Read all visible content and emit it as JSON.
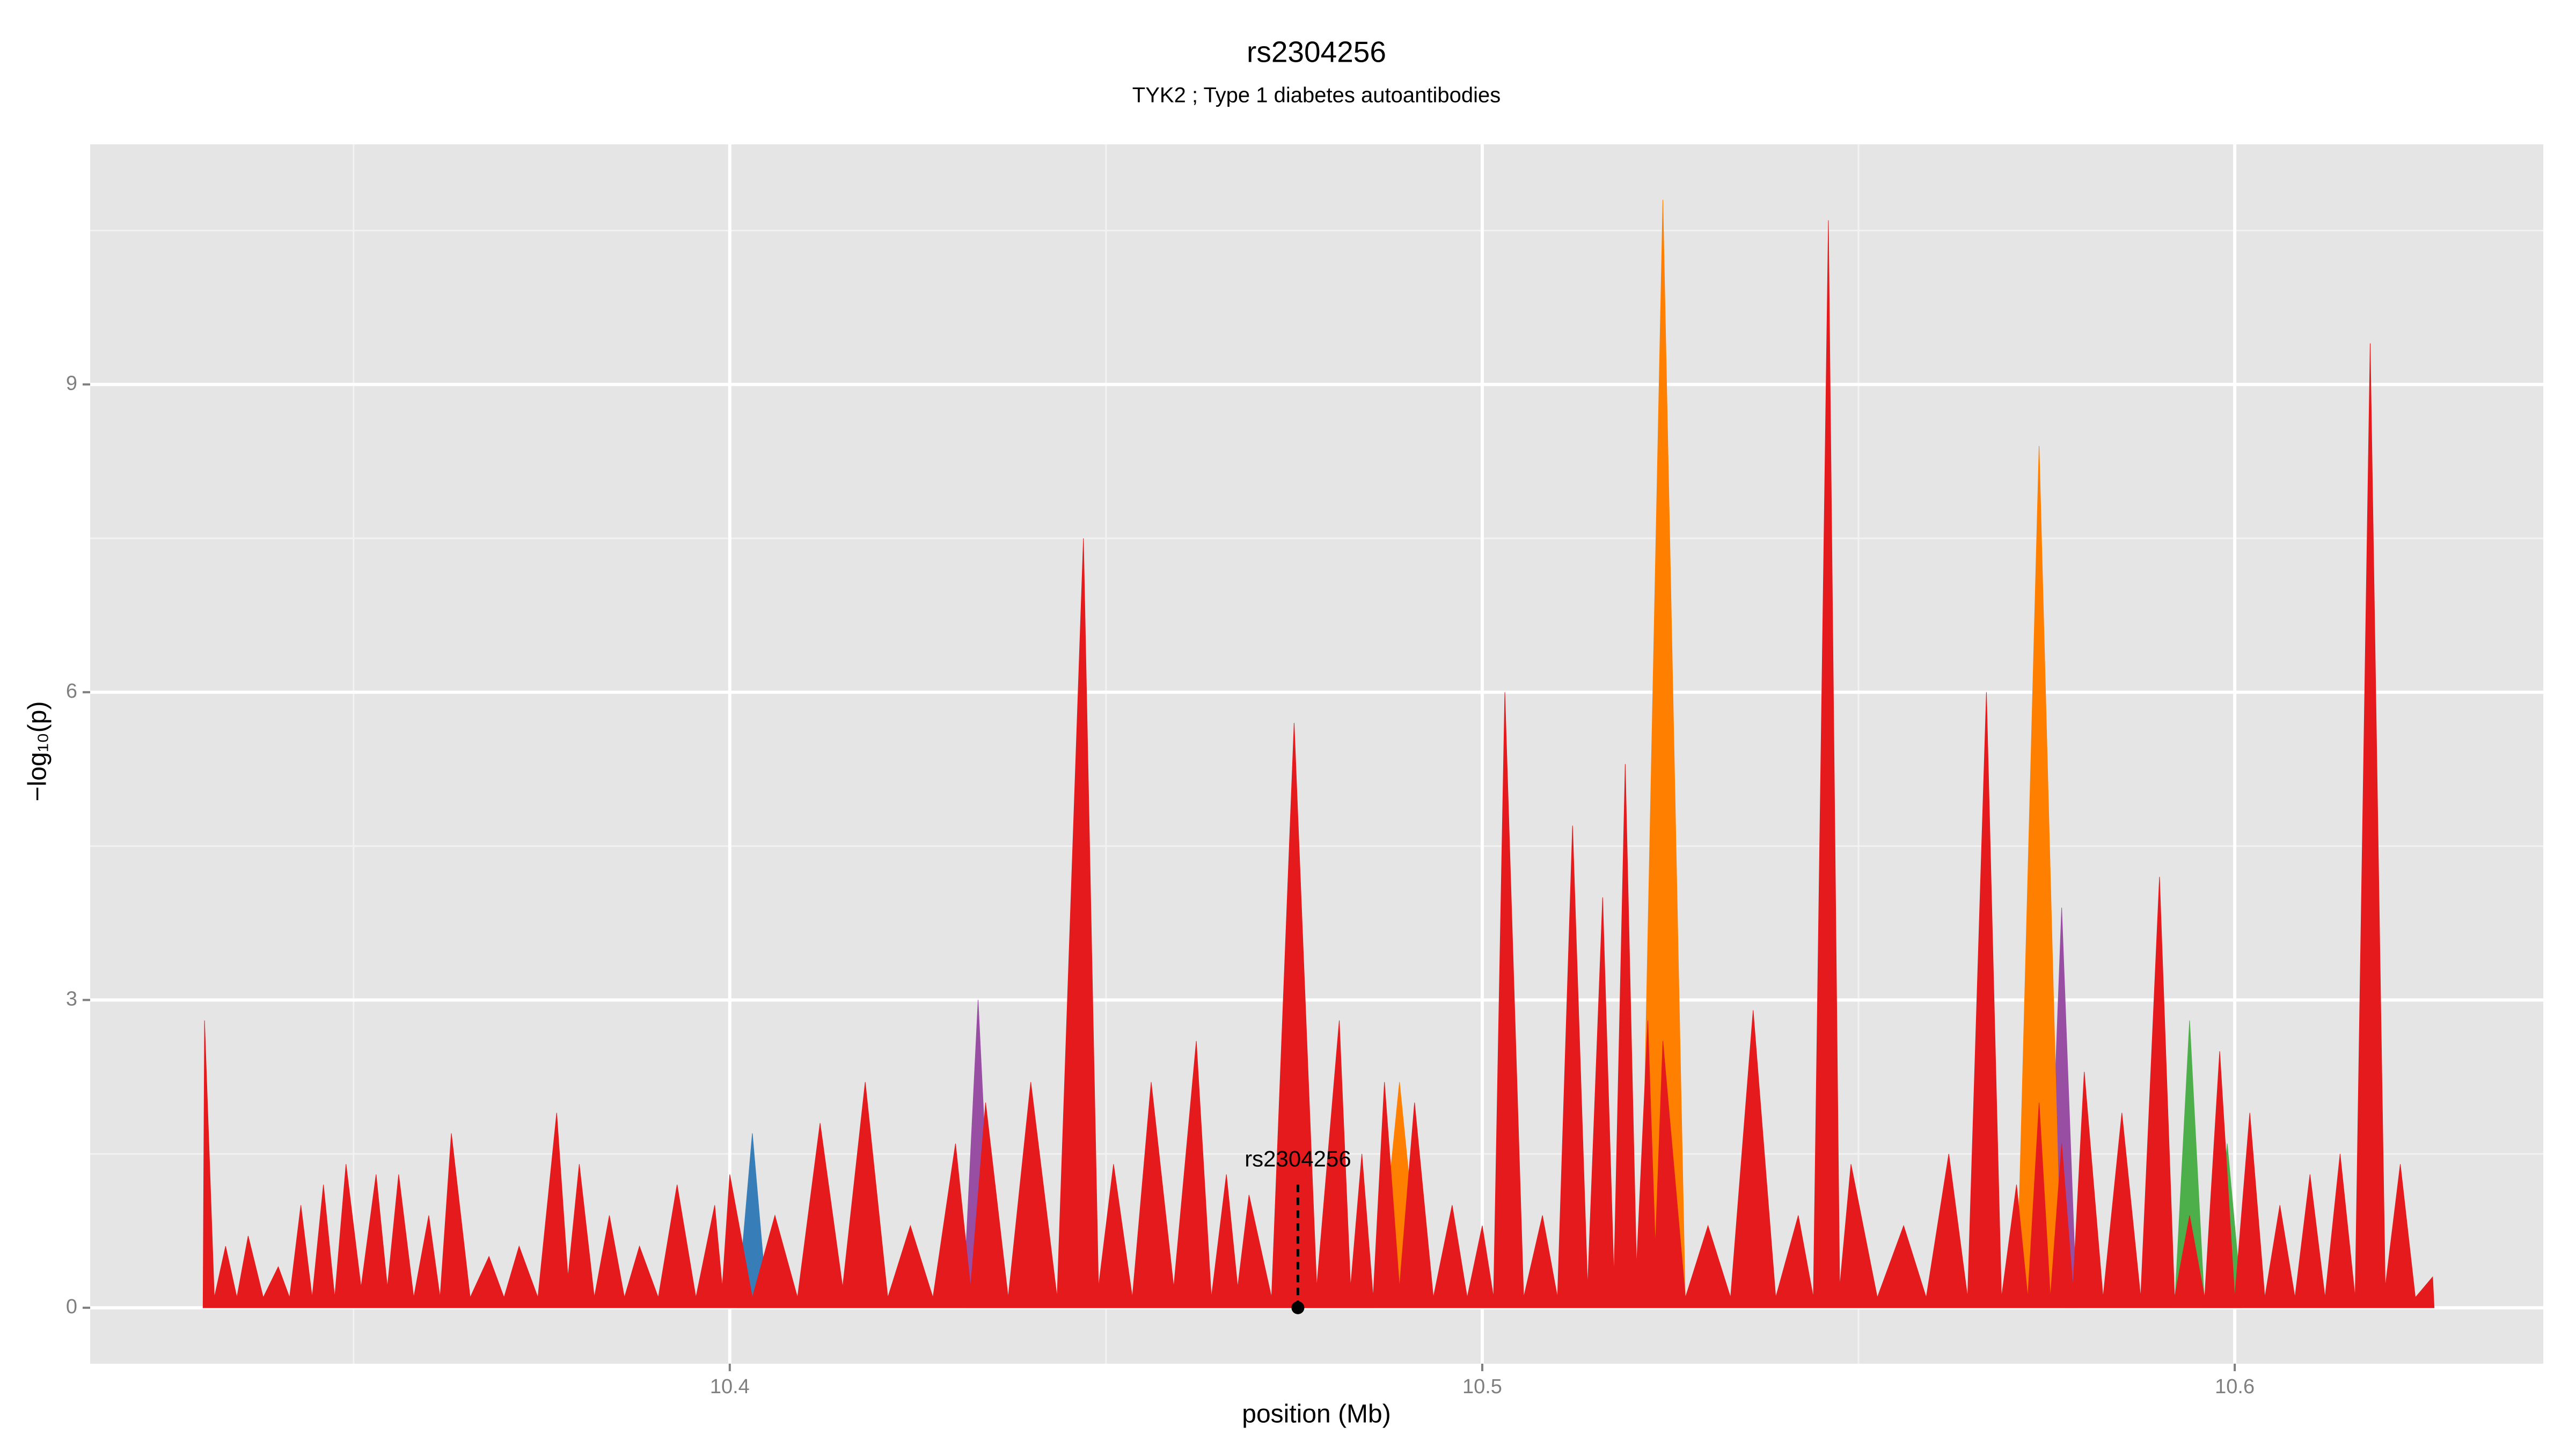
{
  "chart_data": {
    "type": "area",
    "title": "rs2304256",
    "subtitle": "TYK2 ; Type 1 diabetes autoantibodies",
    "xlabel": "position (Mb)",
    "ylabel": "−log₁₀(p)",
    "xlim": [
      10.315,
      10.641
    ],
    "ylim": [
      -0.545,
      11.34
    ],
    "xticks": [
      10.4,
      10.5,
      10.6
    ],
    "xminorticks": [
      10.35,
      10.45,
      10.55
    ],
    "yticks": [
      0,
      3,
      6,
      9
    ],
    "yminorticks": [
      1.5,
      4.5,
      7.5,
      10.5
    ],
    "grid": true,
    "background": "#e5e5e5",
    "series": [
      {
        "color": "#377eb8",
        "x": [
          10.401,
          10.403,
          10.405,
          10.593,
          10.5945,
          10.596
        ],
        "values": [
          0,
          1.7,
          0,
          0,
          1.2,
          0
        ]
      },
      {
        "color": "#984ea3",
        "x": [
          10.431,
          10.433,
          10.435,
          10.575,
          10.577,
          10.579
        ],
        "values": [
          0,
          3.0,
          0,
          0,
          3.9,
          0
        ]
      },
      {
        "color": "#4daf4a",
        "x": [
          10.592,
          10.594,
          10.596,
          10.597,
          10.599,
          10.601
        ],
        "values": [
          0,
          2.8,
          0,
          0,
          1.6,
          0
        ]
      },
      {
        "color": "#ff7f00",
        "x": [
          10.486,
          10.489,
          10.492,
          10.521,
          10.524,
          10.527,
          10.571,
          10.574,
          10.577
        ],
        "values": [
          0,
          2.2,
          0,
          0,
          10.8,
          0,
          0,
          8.4,
          0
        ]
      },
      {
        "color": "#e41a1c",
        "x": [
          10.33,
          10.3302,
          10.3315,
          10.333,
          10.3345,
          10.336,
          10.338,
          10.34,
          10.3415,
          10.343,
          10.3445,
          10.346,
          10.3475,
          10.349,
          10.351,
          10.353,
          10.3545,
          10.356,
          10.358,
          10.36,
          10.3615,
          10.363,
          10.3655,
          10.368,
          10.37,
          10.372,
          10.3745,
          10.377,
          10.3785,
          10.38,
          10.382,
          10.384,
          10.386,
          10.388,
          10.3905,
          10.393,
          10.3955,
          10.398,
          10.399,
          10.4,
          10.403,
          10.406,
          10.409,
          10.412,
          10.415,
          10.418,
          10.421,
          10.424,
          10.427,
          10.43,
          10.432,
          10.434,
          10.437,
          10.44,
          10.4435,
          10.447,
          10.449,
          10.451,
          10.4535,
          10.456,
          10.459,
          10.462,
          10.464,
          10.466,
          10.4675,
          10.469,
          10.472,
          10.475,
          10.478,
          10.481,
          10.4825,
          10.484,
          10.4855,
          10.487,
          10.489,
          10.491,
          10.4935,
          10.496,
          10.498,
          10.5,
          10.5015,
          10.503,
          10.5055,
          10.508,
          10.51,
          10.512,
          10.514,
          10.516,
          10.5175,
          10.519,
          10.5205,
          10.522,
          10.523,
          10.524,
          10.527,
          10.53,
          10.533,
          10.536,
          10.539,
          10.542,
          10.544,
          10.546,
          10.5475,
          10.549,
          10.5525,
          10.556,
          10.559,
          10.562,
          10.5645,
          10.567,
          10.569,
          10.571,
          10.5725,
          10.574,
          10.5755,
          10.577,
          10.5785,
          10.58,
          10.5825,
          10.585,
          10.5875,
          10.59,
          10.592,
          10.594,
          10.596,
          10.598,
          10.6,
          10.602,
          10.604,
          10.606,
          10.608,
          10.61,
          10.612,
          10.614,
          10.616,
          10.618,
          10.62,
          10.622,
          10.624,
          10.6263,
          10.6265
        ],
        "values": [
          0,
          2.8,
          0.1,
          0.6,
          0.1,
          0.7,
          0.1,
          0.4,
          0.1,
          1.0,
          0.1,
          1.2,
          0.1,
          1.4,
          0.2,
          1.3,
          0.2,
          1.3,
          0.1,
          0.9,
          0.1,
          1.7,
          0.1,
          0.5,
          0.1,
          0.6,
          0.1,
          1.9,
          0.3,
          1.4,
          0.1,
          0.9,
          0.1,
          0.6,
          0.1,
          1.2,
          0.1,
          1.0,
          0.2,
          1.3,
          0.1,
          0.9,
          0.1,
          1.8,
          0.2,
          2.2,
          0.1,
          0.8,
          0.1,
          1.6,
          0.2,
          2.0,
          0.1,
          2.2,
          0.1,
          7.5,
          0.2,
          1.4,
          0.1,
          2.2,
          0.2,
          2.6,
          0.1,
          1.3,
          0.2,
          1.1,
          0.1,
          5.7,
          0.2,
          2.8,
          0.2,
          1.5,
          0.1,
          2.2,
          0.2,
          2.0,
          0.1,
          1.0,
          0.1,
          0.8,
          0.1,
          6.0,
          0.1,
          0.9,
          0.1,
          4.7,
          0.2,
          4.0,
          0.3,
          5.3,
          0.4,
          2.8,
          0.6,
          2.6,
          0.1,
          0.8,
          0.1,
          2.9,
          0.1,
          0.9,
          0.1,
          10.6,
          0.2,
          1.4,
          0.1,
          0.8,
          0.1,
          1.5,
          0.1,
          6.0,
          0.1,
          1.2,
          0.1,
          2.0,
          0.1,
          1.6,
          0.2,
          2.3,
          0.1,
          1.9,
          0.1,
          4.2,
          0.1,
          0.9,
          0.1,
          2.5,
          0.1,
          1.9,
          0.1,
          1.0,
          0.1,
          1.3,
          0.1,
          1.5,
          0.1,
          9.4,
          0.2,
          1.4,
          0.1,
          0.3,
          0
        ]
      }
    ],
    "annotation": {
      "label": "rs2304256",
      "x": 10.4755,
      "y": 1.2
    }
  }
}
